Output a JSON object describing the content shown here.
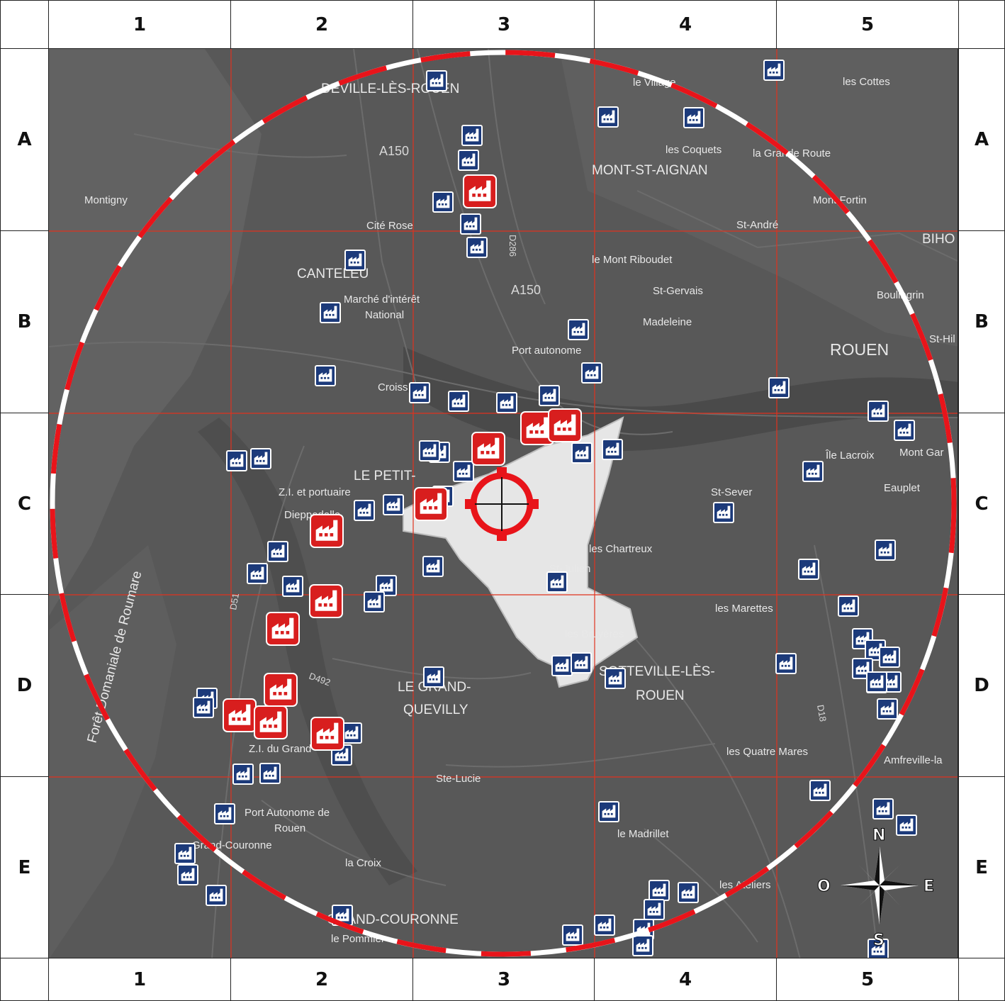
{
  "grid": {
    "columns": [
      "1",
      "2",
      "3",
      "4",
      "5"
    ],
    "rows": [
      "A",
      "B",
      "C",
      "D",
      "E"
    ]
  },
  "colors": {
    "map_background": "#555555",
    "grid_line": "#e0321e",
    "ring_red": "#e8141a",
    "ring_white": "#ffffff",
    "icon_blue": "#1c3a7a",
    "icon_red": "#d81e1e",
    "highlight_zone": "#e6e6e6"
  },
  "places": [
    {
      "name": "DEVILLE-LÈS-ROUEN",
      "size": "med"
    },
    {
      "name": "le Village",
      "size": "small"
    },
    {
      "name": "les Cottes",
      "size": "small"
    },
    {
      "name": "les Coquets",
      "size": "small"
    },
    {
      "name": "la Grande Route",
      "size": "small"
    },
    {
      "name": "MONT-ST-AIGNAN",
      "size": "med"
    },
    {
      "name": "Montigny",
      "size": "small"
    },
    {
      "name": "Mont Fortin",
      "size": "small"
    },
    {
      "name": "Cité Rose",
      "size": "small"
    },
    {
      "name": "St-André",
      "size": "small"
    },
    {
      "name": "le Mont Riboudet",
      "size": "small"
    },
    {
      "name": "CANTELEU",
      "size": "med"
    },
    {
      "name": "BIHO",
      "size": "med"
    },
    {
      "name": "Marché d'intérêt",
      "size": "small"
    },
    {
      "name": "National",
      "size": "small"
    },
    {
      "name": "St-Gervais",
      "size": "small"
    },
    {
      "name": "Madeleine",
      "size": "small"
    },
    {
      "name": "Boulingrin",
      "size": "small"
    },
    {
      "name": "Port autonome",
      "size": "small"
    },
    {
      "name": "ROUEN",
      "size": "big"
    },
    {
      "name": "St-Hil",
      "size": "small"
    },
    {
      "name": "Croiss",
      "size": "small"
    },
    {
      "name": "Île Lacroix",
      "size": "small"
    },
    {
      "name": "Mont Gar",
      "size": "small"
    },
    {
      "name": "LE PETIT-",
      "size": "med"
    },
    {
      "name": "Z.I. et portuaire",
      "size": "small"
    },
    {
      "name": "Dieppedalle",
      "size": "small"
    },
    {
      "name": "Eauplet",
      "size": "small"
    },
    {
      "name": "St-Sever",
      "size": "small"
    },
    {
      "name": "les Chartreux",
      "size": "small"
    },
    {
      "name": "St-Julien",
      "size": "small"
    },
    {
      "name": "Forêt Domaniale de Roumare",
      "size": "med"
    },
    {
      "name": "les Marettes",
      "size": "small"
    },
    {
      "name": "les Bruyères",
      "size": "small"
    },
    {
      "name": "SOTTEVILLE-LÈS-",
      "size": "med"
    },
    {
      "name": "ROUEN",
      "size": "med"
    },
    {
      "name": "LE GRAND-",
      "size": "med"
    },
    {
      "name": "QUEVILLY",
      "size": "med"
    },
    {
      "name": "Z.I. du Grand",
      "size": "small"
    },
    {
      "name": "les Quatre Mares",
      "size": "small"
    },
    {
      "name": "Amfreville-la",
      "size": "small"
    },
    {
      "name": "Ste-Lucie",
      "size": "small"
    },
    {
      "name": "Port Autonome de",
      "size": "small"
    },
    {
      "name": "Rouen",
      "size": "small"
    },
    {
      "name": "le Madrillet",
      "size": "small"
    },
    {
      "name": "Grand-Couronne",
      "size": "small"
    },
    {
      "name": "la Croix",
      "size": "small"
    },
    {
      "name": "les Ateliers",
      "size": "small"
    },
    {
      "name": "GRAND-COURONNE",
      "size": "med"
    },
    {
      "name": "le Pommier",
      "size": "small"
    }
  ],
  "roads": [
    "A150",
    "A150",
    "D286",
    "D492",
    "D18",
    "D51"
  ],
  "compass": {
    "north": "N",
    "south": "S",
    "east": "E",
    "west": "O"
  },
  "target": {
    "label": "target-crosshair"
  },
  "icons": {
    "blue": "factory-icon",
    "red": "major-factory-icon"
  }
}
